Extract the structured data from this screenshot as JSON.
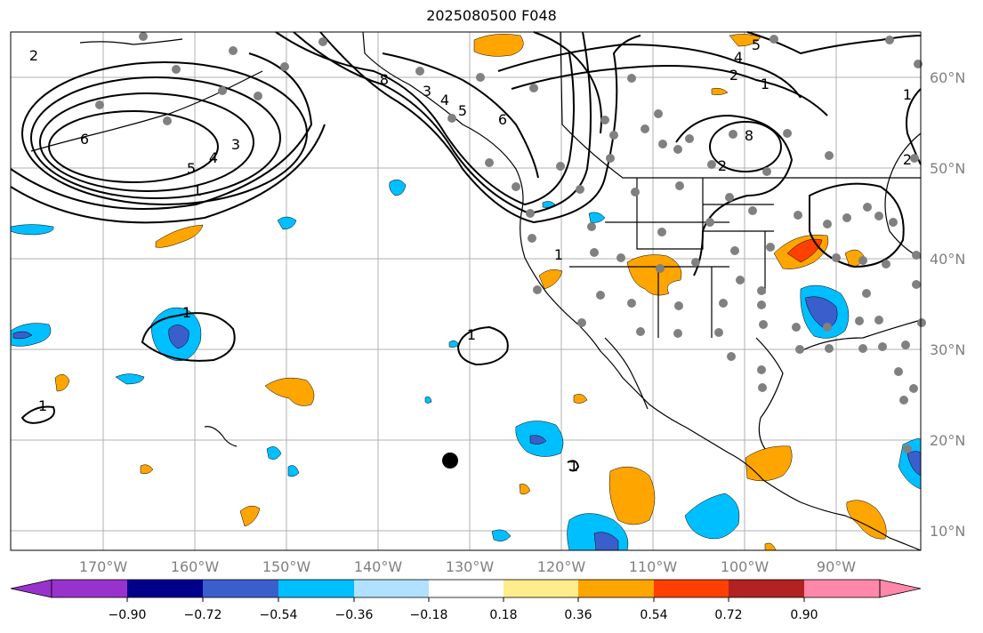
{
  "title": "2025080500 F048",
  "map": {
    "lon_labels": [
      "170°W",
      "160°W",
      "150°W",
      "140°W",
      "130°W",
      "120°W",
      "110°W",
      "100°W",
      "90°W"
    ],
    "lat_labels": [
      "60°N",
      "50°N",
      "40°N",
      "30°N",
      "20°N",
      "10°N"
    ],
    "contour_labels": [
      "2",
      "6",
      "5",
      "4",
      "3",
      "1",
      "1",
      "1",
      "1",
      "8",
      "6",
      "5",
      "4",
      "3",
      "2",
      "1",
      "1",
      "4",
      "5",
      "2",
      "1",
      "1",
      "2",
      "8",
      "3",
      "6",
      "1",
      "1",
      "1",
      "1",
      "1",
      "2",
      "1"
    ]
  },
  "colorbar": {
    "colors": [
      "#9932CC",
      "#00008B",
      "#3A5FCD",
      "#00BFFF",
      "#B0E2FF",
      "#FFFFFF",
      "#FFEC8B",
      "#FFA500",
      "#FF4000",
      "#B22222",
      "#FF88AA"
    ],
    "tick_labels": [
      "−0.90",
      "−0.72",
      "−0.54",
      "−0.36",
      "−0.18",
      "0.18",
      "0.36",
      "0.54",
      "0.72",
      "0.90"
    ]
  },
  "legend_colors": {
    "neg_strong": "#3A5FCD",
    "neg_mid": "#00BFFF",
    "neg_weak": "#B0E2FF",
    "pos_weak": "#FFEC8B",
    "pos_mid": "#FFA500",
    "pos_strong": "#FF4000",
    "station": "#808080"
  }
}
